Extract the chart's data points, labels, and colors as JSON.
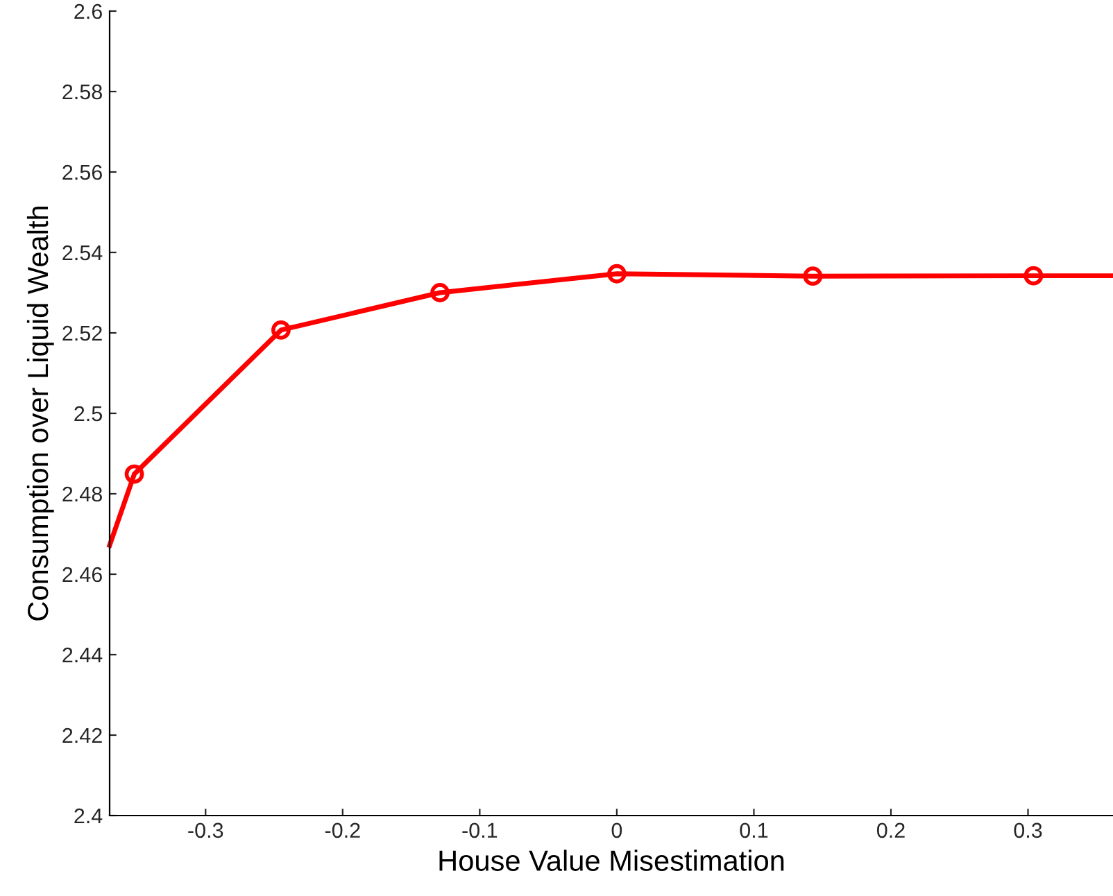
{
  "chart_data": {
    "type": "line",
    "xlabel": "House Value Misestimation",
    "ylabel": "Consumption over Liquid Wealth",
    "x": [
      -0.37,
      -0.352,
      -0.245,
      -0.129,
      0,
      0.143,
      0.304,
      0.362
    ],
    "series": [
      {
        "color": "#ff0000",
        "values": [
          2.4672,
          2.4849,
          2.5207,
          2.53,
          2.5347,
          2.5341,
          2.5342,
          2.5342
        ]
      }
    ],
    "marker": "circle",
    "line_style": "solid",
    "grid": false,
    "legend": false,
    "xlim": [
      -0.37,
      0.362
    ],
    "ylim": [
      2.4,
      2.6
    ],
    "xticks": [
      -0.3,
      -0.2,
      -0.1,
      0,
      0.1,
      0.2,
      0.3
    ],
    "yticks": [
      2.4,
      2.42,
      2.44,
      2.46,
      2.48,
      2.5,
      2.52,
      2.54,
      2.56,
      2.58,
      2.6
    ]
  }
}
